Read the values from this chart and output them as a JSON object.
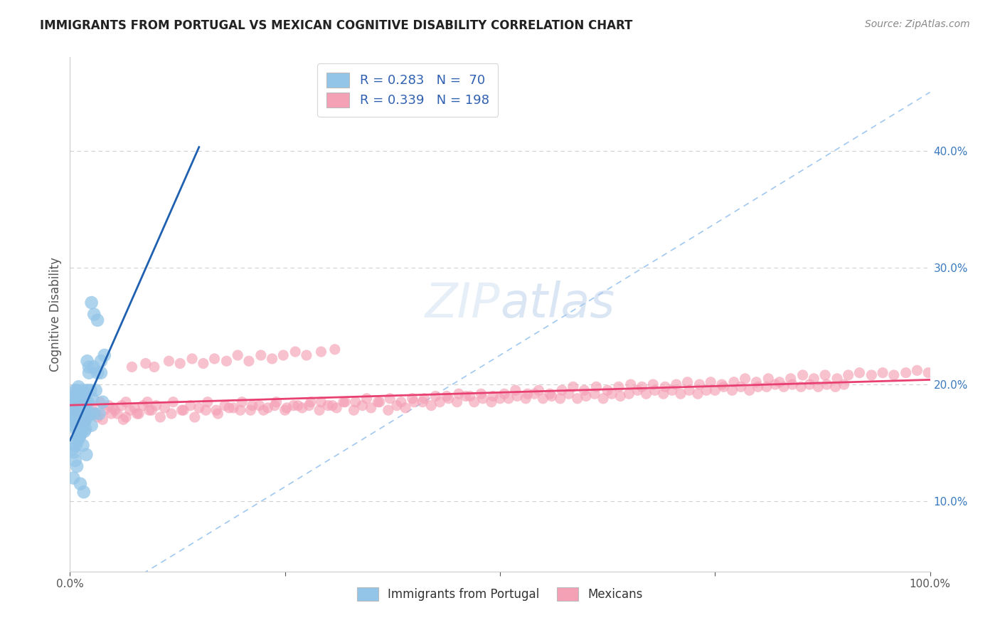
{
  "title": "IMMIGRANTS FROM PORTUGAL VS MEXICAN COGNITIVE DISABILITY CORRELATION CHART",
  "source_text": "Source: ZipAtlas.com",
  "ylabel": "Cognitive Disability",
  "watermark": "ZIPatlas",
  "legend_line1": "R = 0.283   N =  70",
  "legend_line2": "R = 0.339   N = 198",
  "xlim": [
    0.0,
    1.0
  ],
  "ylim": [
    0.04,
    0.48
  ],
  "yticks": [
    0.1,
    0.2,
    0.3,
    0.4
  ],
  "ytick_labels": [
    "10.0%",
    "20.0%",
    "30.0%",
    "40.0%"
  ],
  "background_color": "#ffffff",
  "grid_color": "#d0d0d0",
  "title_color": "#222222",
  "source_color": "#888888",
  "blue_color": "#93c5e8",
  "pink_color": "#f4a0b5",
  "blue_line_color": "#2060b0",
  "pink_line_color": "#e84070",
  "ref_line_color": "#a0c8f0",
  "portugal_x": [
    0.001,
    0.002,
    0.003,
    0.004,
    0.005,
    0.005,
    0.006,
    0.006,
    0.007,
    0.007,
    0.008,
    0.008,
    0.009,
    0.009,
    0.01,
    0.01,
    0.01,
    0.011,
    0.011,
    0.012,
    0.012,
    0.013,
    0.013,
    0.014,
    0.014,
    0.015,
    0.015,
    0.016,
    0.016,
    0.017,
    0.017,
    0.018,
    0.018,
    0.019,
    0.02,
    0.02,
    0.021,
    0.022,
    0.023,
    0.024,
    0.025,
    0.026,
    0.027,
    0.028,
    0.03,
    0.032,
    0.034,
    0.036,
    0.038,
    0.04,
    0.003,
    0.005,
    0.007,
    0.009,
    0.011,
    0.013,
    0.015,
    0.017,
    0.019,
    0.022,
    0.025,
    0.028,
    0.032,
    0.036,
    0.004,
    0.006,
    0.008,
    0.012,
    0.016,
    0.02
  ],
  "portugal_y": [
    0.175,
    0.18,
    0.17,
    0.185,
    0.19,
    0.165,
    0.195,
    0.172,
    0.188,
    0.162,
    0.178,
    0.195,
    0.168,
    0.182,
    0.198,
    0.172,
    0.155,
    0.185,
    0.165,
    0.175,
    0.192,
    0.16,
    0.188,
    0.175,
    0.165,
    0.195,
    0.17,
    0.185,
    0.175,
    0.19,
    0.168,
    0.178,
    0.162,
    0.185,
    0.195,
    0.172,
    0.185,
    0.21,
    0.175,
    0.195,
    0.165,
    0.188,
    0.215,
    0.175,
    0.195,
    0.21,
    0.175,
    0.22,
    0.185,
    0.225,
    0.145,
    0.142,
    0.148,
    0.152,
    0.155,
    0.158,
    0.148,
    0.16,
    0.14,
    0.215,
    0.27,
    0.26,
    0.255,
    0.21,
    0.12,
    0.135,
    0.13,
    0.115,
    0.108,
    0.22
  ],
  "mexico_x": [
    0.005,
    0.01,
    0.015,
    0.02,
    0.025,
    0.03,
    0.035,
    0.04,
    0.045,
    0.05,
    0.055,
    0.06,
    0.065,
    0.07,
    0.075,
    0.08,
    0.085,
    0.09,
    0.095,
    0.1,
    0.11,
    0.12,
    0.13,
    0.14,
    0.15,
    0.16,
    0.17,
    0.18,
    0.19,
    0.2,
    0.21,
    0.22,
    0.23,
    0.24,
    0.25,
    0.26,
    0.27,
    0.28,
    0.29,
    0.3,
    0.31,
    0.32,
    0.33,
    0.34,
    0.35,
    0.36,
    0.37,
    0.38,
    0.39,
    0.4,
    0.41,
    0.42,
    0.43,
    0.44,
    0.45,
    0.46,
    0.47,
    0.48,
    0.49,
    0.5,
    0.51,
    0.52,
    0.53,
    0.54,
    0.55,
    0.56,
    0.57,
    0.58,
    0.59,
    0.6,
    0.61,
    0.62,
    0.63,
    0.64,
    0.65,
    0.66,
    0.67,
    0.68,
    0.69,
    0.7,
    0.71,
    0.72,
    0.73,
    0.74,
    0.75,
    0.76,
    0.77,
    0.78,
    0.79,
    0.8,
    0.81,
    0.82,
    0.83,
    0.84,
    0.85,
    0.86,
    0.87,
    0.88,
    0.89,
    0.9,
    0.012,
    0.025,
    0.038,
    0.052,
    0.065,
    0.078,
    0.092,
    0.105,
    0.118,
    0.132,
    0.145,
    0.158,
    0.172,
    0.185,
    0.198,
    0.212,
    0.225,
    0.238,
    0.252,
    0.265,
    0.278,
    0.292,
    0.305,
    0.318,
    0.332,
    0.345,
    0.358,
    0.372,
    0.385,
    0.398,
    0.412,
    0.425,
    0.438,
    0.452,
    0.465,
    0.478,
    0.492,
    0.505,
    0.518,
    0.532,
    0.545,
    0.558,
    0.572,
    0.585,
    0.598,
    0.612,
    0.625,
    0.638,
    0.652,
    0.665,
    0.678,
    0.692,
    0.705,
    0.718,
    0.732,
    0.745,
    0.758,
    0.772,
    0.785,
    0.798,
    0.812,
    0.825,
    0.838,
    0.852,
    0.865,
    0.878,
    0.892,
    0.905,
    0.918,
    0.932,
    0.945,
    0.958,
    0.972,
    0.985,
    0.998,
    0.007,
    0.018,
    0.032,
    0.048,
    0.062,
    0.072,
    0.088,
    0.098,
    0.115,
    0.128,
    0.142,
    0.155,
    0.168,
    0.182,
    0.195,
    0.208,
    0.222,
    0.235,
    0.248,
    0.262,
    0.275,
    0.292,
    0.308
  ],
  "mexico_y": [
    0.178,
    0.182,
    0.175,
    0.185,
    0.18,
    0.175,
    0.185,
    0.178,
    0.182,
    0.18,
    0.175,
    0.182,
    0.185,
    0.178,
    0.18,
    0.175,
    0.182,
    0.185,
    0.178,
    0.182,
    0.18,
    0.185,
    0.178,
    0.182,
    0.18,
    0.185,
    0.178,
    0.182,
    0.18,
    0.185,
    0.178,
    0.182,
    0.18,
    0.185,
    0.178,
    0.182,
    0.18,
    0.185,
    0.178,
    0.182,
    0.18,
    0.185,
    0.178,
    0.182,
    0.18,
    0.185,
    0.178,
    0.182,
    0.18,
    0.185,
    0.185,
    0.182,
    0.185,
    0.188,
    0.185,
    0.19,
    0.185,
    0.188,
    0.185,
    0.188,
    0.188,
    0.19,
    0.188,
    0.192,
    0.188,
    0.19,
    0.188,
    0.192,
    0.188,
    0.19,
    0.192,
    0.188,
    0.192,
    0.19,
    0.192,
    0.195,
    0.192,
    0.195,
    0.192,
    0.195,
    0.192,
    0.195,
    0.192,
    0.195,
    0.195,
    0.198,
    0.195,
    0.198,
    0.195,
    0.198,
    0.198,
    0.2,
    0.198,
    0.2,
    0.198,
    0.2,
    0.198,
    0.2,
    0.198,
    0.2,
    0.172,
    0.175,
    0.17,
    0.178,
    0.172,
    0.175,
    0.178,
    0.172,
    0.175,
    0.178,
    0.172,
    0.178,
    0.175,
    0.18,
    0.178,
    0.182,
    0.178,
    0.182,
    0.18,
    0.182,
    0.182,
    0.185,
    0.182,
    0.185,
    0.185,
    0.188,
    0.185,
    0.188,
    0.185,
    0.188,
    0.188,
    0.19,
    0.19,
    0.192,
    0.19,
    0.192,
    0.19,
    0.192,
    0.195,
    0.192,
    0.195,
    0.192,
    0.195,
    0.198,
    0.195,
    0.198,
    0.195,
    0.198,
    0.2,
    0.198,
    0.2,
    0.198,
    0.2,
    0.202,
    0.2,
    0.202,
    0.2,
    0.202,
    0.205,
    0.202,
    0.205,
    0.202,
    0.205,
    0.208,
    0.205,
    0.208,
    0.205,
    0.208,
    0.21,
    0.208,
    0.21,
    0.208,
    0.21,
    0.212,
    0.21,
    0.165,
    0.168,
    0.172,
    0.175,
    0.17,
    0.215,
    0.218,
    0.215,
    0.22,
    0.218,
    0.222,
    0.218,
    0.222,
    0.22,
    0.225,
    0.22,
    0.225,
    0.222,
    0.225,
    0.228,
    0.225,
    0.228,
    0.23
  ]
}
